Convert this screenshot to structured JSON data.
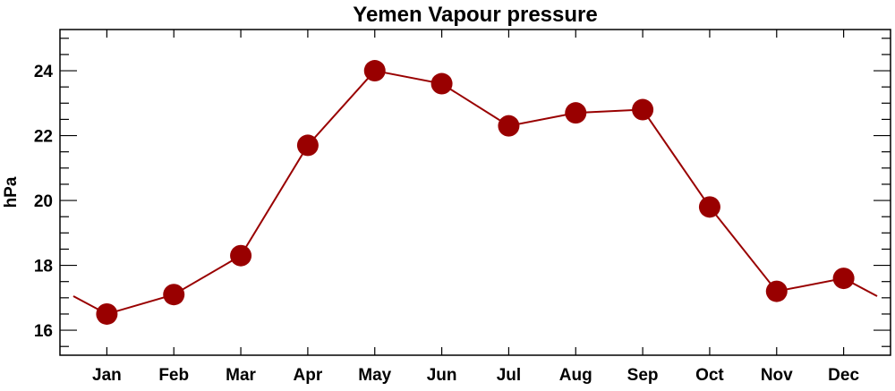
{
  "chart_data": {
    "type": "line",
    "title": "Yemen Vapour pressure",
    "xlabel": "",
    "ylabel": "hPa",
    "categories": [
      "Jan",
      "Feb",
      "Mar",
      "Apr",
      "May",
      "Jun",
      "Jul",
      "Aug",
      "Sep",
      "Oct",
      "Nov",
      "Dec"
    ],
    "series": [
      {
        "name": "Vapour pressure",
        "values": [
          16.5,
          17.1,
          18.3,
          21.7,
          24.0,
          23.6,
          22.3,
          22.7,
          22.8,
          19.8,
          17.2,
          17.6
        ]
      }
    ],
    "yticks": [
      16,
      18,
      20,
      22,
      24
    ],
    "ylim": [
      15.23,
      25.27
    ],
    "xlim": [
      0.3,
      12.7
    ],
    "grid": false,
    "colors": {
      "series": "#990000",
      "axis": "#000000"
    }
  }
}
